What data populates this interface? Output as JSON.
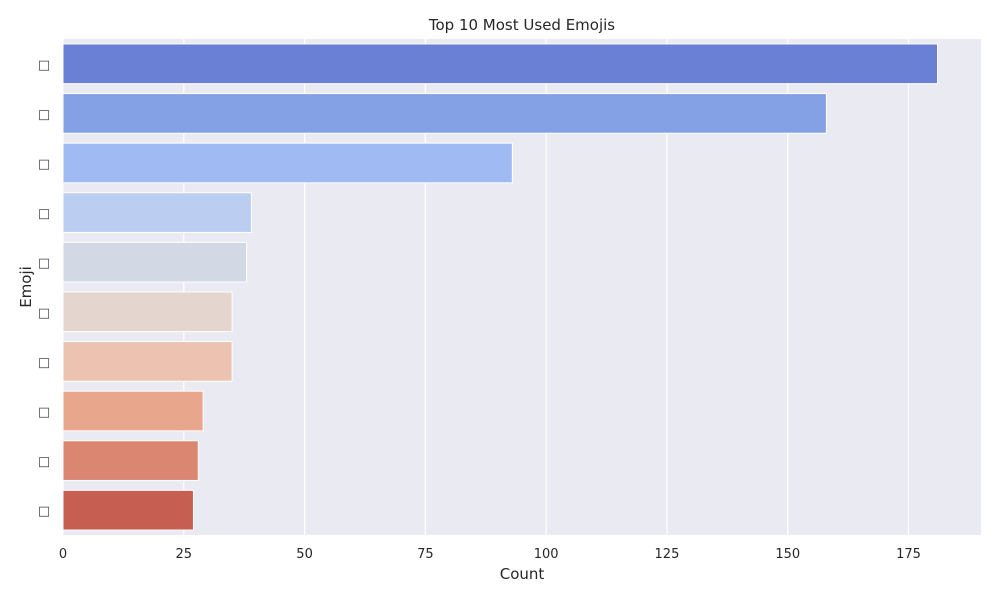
{
  "chart_data": {
    "type": "bar",
    "orientation": "horizontal",
    "title": "Top 10 Most Used Emojis",
    "xlabel": "Count",
    "ylabel": "Emoji",
    "categories": [
      "□",
      "□",
      "□",
      "□",
      "□",
      "□",
      "□",
      "□",
      "□",
      "□"
    ],
    "values": [
      181,
      158,
      93,
      39,
      38,
      35,
      35,
      29,
      28,
      27
    ],
    "colors": [
      "#6a80d4",
      "#85a1e6",
      "#a0bbf3",
      "#bbcef1",
      "#d2d9e5",
      "#e4d6cf",
      "#ecc3b0",
      "#e8a78d",
      "#da8670",
      "#c75e52"
    ],
    "xlim": [
      0,
      190
    ],
    "xticks": [
      0,
      25,
      50,
      75,
      100,
      125,
      150,
      175
    ],
    "grid": true,
    "background": "#eaeaf2"
  }
}
